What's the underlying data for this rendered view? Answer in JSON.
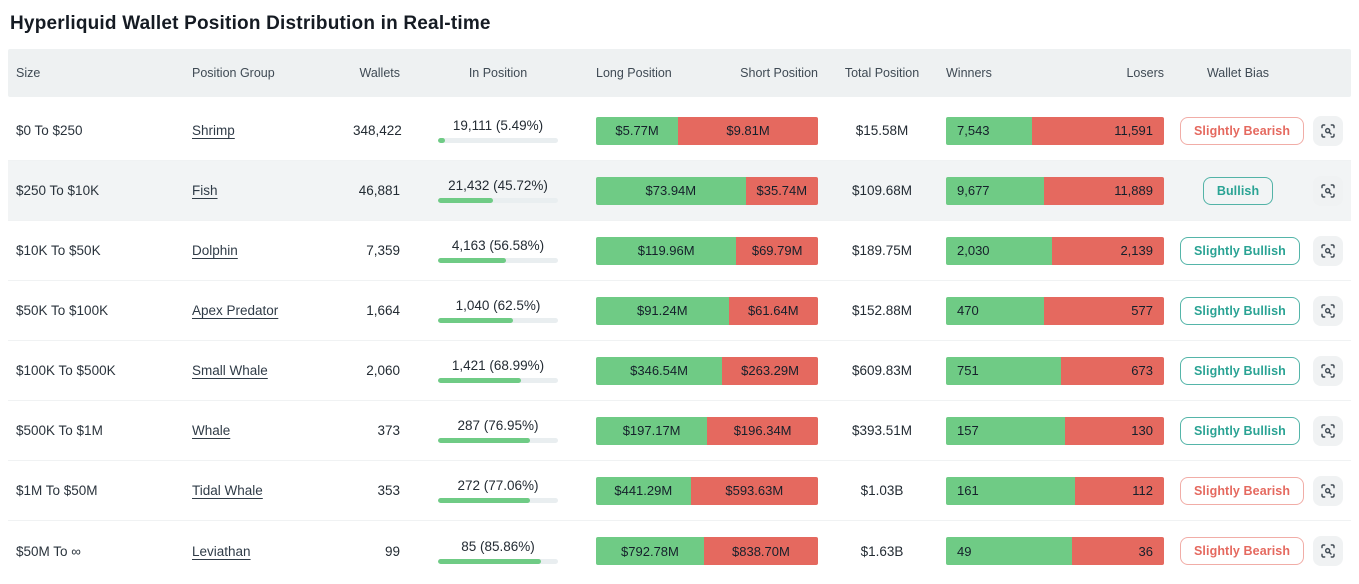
{
  "title": "Hyperliquid Wallet Position Distribution in Real-time",
  "columns": {
    "size": "Size",
    "group": "Position Group",
    "wallets": "Wallets",
    "in_position": "In Position",
    "long": "Long Position",
    "short": "Short Position",
    "total": "Total Position",
    "winners": "Winners",
    "losers": "Losers",
    "bias": "Wallet Bias"
  },
  "colors": {
    "green": "#6fcb85",
    "red": "#e5695f",
    "bullish": "#2aa394",
    "bearish": "#e5695f",
    "track": "#e9eef0",
    "header_bg": "#eef1f2",
    "row_highlight": "#f2f4f5"
  },
  "icons": {
    "row_action": "scan-search-icon"
  },
  "rows": [
    {
      "size": "$0 To $250",
      "group": "Shrimp",
      "wallets": "348,422",
      "in_position": "19,111 (5.49%)",
      "in_position_pct": 5.49,
      "long": "$5.77M",
      "short": "$9.81M",
      "long_share_pct": 37.0,
      "total": "$15.58M",
      "winners": "7,543",
      "losers": "11,591",
      "winners_share_pct": 39.4,
      "bias": "Slightly Bearish",
      "bias_type": "bearish",
      "highlighted": false
    },
    {
      "size": "$250 To $10K",
      "group": "Fish",
      "wallets": "46,881",
      "in_position": "21,432 (45.72%)",
      "in_position_pct": 45.72,
      "long": "$73.94M",
      "short": "$35.74M",
      "long_share_pct": 67.4,
      "total": "$109.68M",
      "winners": "9,677",
      "losers": "11,889",
      "winners_share_pct": 44.9,
      "bias": "Bullish",
      "bias_type": "bullish",
      "highlighted": true
    },
    {
      "size": "$10K To $50K",
      "group": "Dolphin",
      "wallets": "7,359",
      "in_position": "4,163 (56.58%)",
      "in_position_pct": 56.58,
      "long": "$119.96M",
      "short": "$69.79M",
      "long_share_pct": 63.2,
      "total": "$189.75M",
      "winners": "2,030",
      "losers": "2,139",
      "winners_share_pct": 48.7,
      "bias": "Slightly Bullish",
      "bias_type": "bullish",
      "highlighted": false
    },
    {
      "size": "$50K To $100K",
      "group": "Apex Predator",
      "wallets": "1,664",
      "in_position": "1,040 (62.5%)",
      "in_position_pct": 62.5,
      "long": "$91.24M",
      "short": "$61.64M",
      "long_share_pct": 59.7,
      "total": "$152.88M",
      "winners": "470",
      "losers": "577",
      "winners_share_pct": 44.9,
      "bias": "Slightly Bullish",
      "bias_type": "bullish",
      "highlighted": false
    },
    {
      "size": "$100K To $500K",
      "group": "Small Whale",
      "wallets": "2,060",
      "in_position": "1,421 (68.99%)",
      "in_position_pct": 68.99,
      "long": "$346.54M",
      "short": "$263.29M",
      "long_share_pct": 56.8,
      "total": "$609.83M",
      "winners": "751",
      "losers": "673",
      "winners_share_pct": 52.7,
      "bias": "Slightly Bullish",
      "bias_type": "bullish",
      "highlighted": false
    },
    {
      "size": "$500K To $1M",
      "group": "Whale",
      "wallets": "373",
      "in_position": "287 (76.95%)",
      "in_position_pct": 76.95,
      "long": "$197.17M",
      "short": "$196.34M",
      "long_share_pct": 50.1,
      "total": "$393.51M",
      "winners": "157",
      "losers": "130",
      "winners_share_pct": 54.7,
      "bias": "Slightly Bullish",
      "bias_type": "bullish",
      "highlighted": false
    },
    {
      "size": "$1M To $50M",
      "group": "Tidal Whale",
      "wallets": "353",
      "in_position": "272 (77.06%)",
      "in_position_pct": 77.06,
      "long": "$441.29M",
      "short": "$593.63M",
      "long_share_pct": 42.6,
      "total": "$1.03B",
      "winners": "161",
      "losers": "112",
      "winners_share_pct": 59.0,
      "bias": "Slightly Bearish",
      "bias_type": "bearish",
      "highlighted": false
    },
    {
      "size": "$50M To ∞",
      "group": "Leviathan",
      "wallets": "99",
      "in_position": "85 (85.86%)",
      "in_position_pct": 85.86,
      "long": "$792.78M",
      "short": "$838.70M",
      "long_share_pct": 48.6,
      "total": "$1.63B",
      "winners": "49",
      "losers": "36",
      "winners_share_pct": 57.6,
      "bias": "Slightly Bearish",
      "bias_type": "bearish",
      "highlighted": false
    }
  ]
}
